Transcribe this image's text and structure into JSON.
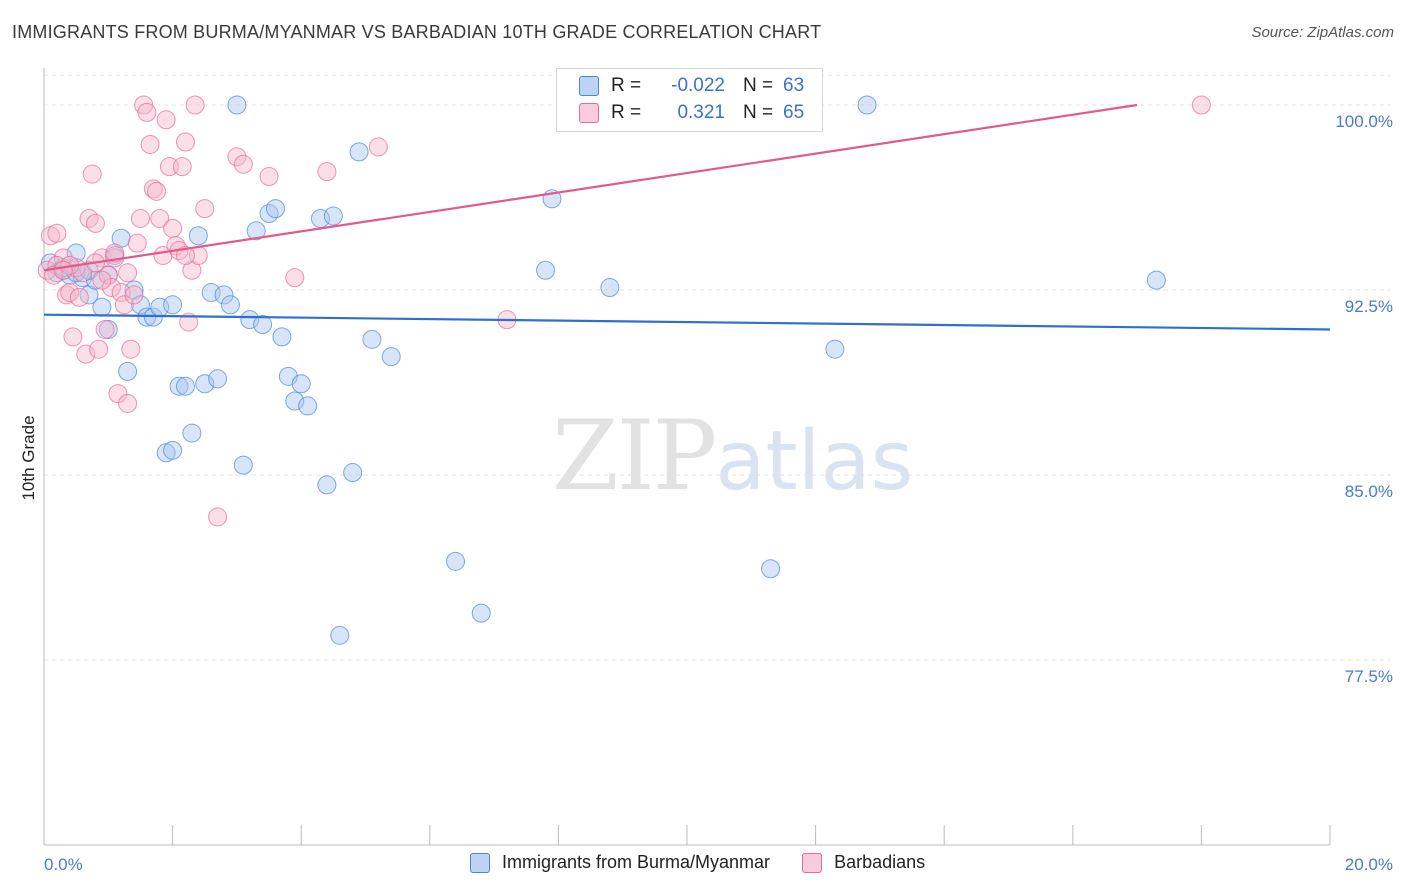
{
  "title": "IMMIGRANTS FROM BURMA/MYANMAR VS BARBADIAN 10TH GRADE CORRELATION CHART",
  "source": "Source: ZipAtlas.com",
  "watermark": {
    "zip": "ZIP",
    "atlas": "atlas"
  },
  "legend": {
    "blue": {
      "r_label": "R =",
      "r_value": "-0.022",
      "n_label": "N =",
      "n_value": "63"
    },
    "pink": {
      "r_label": "R =",
      "r_value": "0.321",
      "n_label": "N =",
      "n_value": "65"
    }
  },
  "colors": {
    "blue": "#4a86d8",
    "pink": "#e86a97",
    "blue_fill": "#a9c6ef",
    "pink_fill": "#f5b8cc",
    "tick_text": "#4a7cc9"
  },
  "chart_data": {
    "type": "scatter",
    "title": "IMMIGRANTS FROM BURMA/MYANMAR VS BARBADIAN 10TH GRADE CORRELATION CHART",
    "xlabel": "",
    "ylabel": "10th Grade",
    "xlim": [
      0,
      20
    ],
    "ylim": [
      70,
      101.5
    ],
    "x_tick_labels": [
      "0.0%",
      "20.0%"
    ],
    "y_ticks": [
      {
        "value": 100,
        "label": "100.0%"
      },
      {
        "value": 92.5,
        "label": "92.5%"
      },
      {
        "value": 85,
        "label": "85.0%"
      },
      {
        "value": 77.5,
        "label": "77.5%"
      }
    ],
    "grid": true,
    "series": [
      {
        "name": "Immigrants from Burma/Myanmar",
        "color": "#4a86d8",
        "trend": {
          "x": [
            0,
            20
          ],
          "y": [
            91.5,
            90.9
          ]
        },
        "points": [
          [
            0.1,
            93.6
          ],
          [
            0.2,
            93.2
          ],
          [
            0.3,
            93.3
          ],
          [
            0.4,
            93.1
          ],
          [
            0.5,
            94
          ],
          [
            0.6,
            93
          ],
          [
            0.7,
            92.3
          ],
          [
            0.8,
            92.9
          ],
          [
            0.9,
            91.8
          ],
          [
            1.0,
            90.9
          ],
          [
            1.1,
            93.9
          ],
          [
            1.2,
            94.6
          ],
          [
            1.3,
            89.2
          ],
          [
            1.4,
            92.5
          ],
          [
            1.5,
            91.9
          ],
          [
            1.6,
            91.4
          ],
          [
            1.7,
            91.4
          ],
          [
            1.8,
            91.8
          ],
          [
            1.9,
            85.9
          ],
          [
            2.0,
            86
          ],
          [
            2.1,
            88.6
          ],
          [
            2.2,
            88.6
          ],
          [
            2.3,
            86.7
          ],
          [
            2.4,
            94.7
          ],
          [
            2.5,
            88.7
          ],
          [
            2.6,
            92.4
          ],
          [
            2.7,
            88.9
          ],
          [
            2.8,
            92.3
          ],
          [
            2.9,
            91.9
          ],
          [
            3.0,
            100
          ],
          [
            3.1,
            85.4
          ],
          [
            3.2,
            91.3
          ],
          [
            3.3,
            94.9
          ],
          [
            3.4,
            91.1
          ],
          [
            3.5,
            95.6
          ],
          [
            3.6,
            95.8
          ],
          [
            3.7,
            90.6
          ],
          [
            3.8,
            89
          ],
          [
            3.9,
            88
          ],
          [
            4.0,
            88.7
          ],
          [
            4.1,
            87.8
          ],
          [
            4.3,
            95.4
          ],
          [
            4.4,
            84.6
          ],
          [
            4.5,
            95.5
          ],
          [
            4.6,
            78.5
          ],
          [
            4.8,
            85.1
          ],
          [
            4.9,
            98.1
          ],
          [
            5.1,
            90.5
          ],
          [
            5.4,
            89.8
          ],
          [
            6.4,
            81.5
          ],
          [
            6.8,
            79.4
          ],
          [
            7.8,
            93.3
          ],
          [
            7.9,
            96.2
          ],
          [
            8.8,
            92.6
          ],
          [
            11.3,
            81.2
          ],
          [
            12.3,
            90.1
          ],
          [
            12.8,
            100
          ],
          [
            17.3,
            92.9
          ],
          [
            2.0,
            91.9
          ],
          [
            1.0,
            93.1
          ],
          [
            0.3,
            93.4
          ],
          [
            0.5,
            93.2
          ],
          [
            0.7,
            93.3
          ]
        ]
      },
      {
        "name": "Barbadians",
        "color": "#e86a97",
        "trend": {
          "x": [
            0,
            17
          ],
          "y": [
            93.3,
            100
          ]
        },
        "points": [
          [
            0.05,
            93.3
          ],
          [
            0.1,
            94.7
          ],
          [
            0.2,
            94.8
          ],
          [
            0.3,
            93.8
          ],
          [
            0.35,
            92.3
          ],
          [
            0.4,
            92.4
          ],
          [
            0.45,
            90.6
          ],
          [
            0.5,
            93.4
          ],
          [
            0.55,
            92.2
          ],
          [
            0.6,
            93.2
          ],
          [
            0.65,
            89.9
          ],
          [
            0.7,
            95.4
          ],
          [
            0.75,
            97.2
          ],
          [
            0.8,
            95.2
          ],
          [
            0.85,
            90.1
          ],
          [
            0.9,
            93.8
          ],
          [
            0.95,
            90.9
          ],
          [
            1.0,
            93.1
          ],
          [
            1.05,
            92.6
          ],
          [
            1.1,
            93.8
          ],
          [
            1.15,
            88.3
          ],
          [
            1.2,
            92.4
          ],
          [
            1.25,
            91.9
          ],
          [
            1.3,
            87.9
          ],
          [
            1.35,
            90.1
          ],
          [
            1.4,
            92.3
          ],
          [
            1.45,
            94.4
          ],
          [
            1.5,
            95.4
          ],
          [
            1.55,
            100
          ],
          [
            1.6,
            99.7
          ],
          [
            1.65,
            98.4
          ],
          [
            1.7,
            96.6
          ],
          [
            1.75,
            96.5
          ],
          [
            1.8,
            95.4
          ],
          [
            1.85,
            93.9
          ],
          [
            1.9,
            99.4
          ],
          [
            1.95,
            97.5
          ],
          [
            2.0,
            95
          ],
          [
            2.05,
            94.3
          ],
          [
            2.1,
            94.1
          ],
          [
            2.15,
            97.5
          ],
          [
            2.2,
            98.5
          ],
          [
            2.25,
            91.2
          ],
          [
            2.3,
            93.3
          ],
          [
            2.35,
            100
          ],
          [
            2.4,
            93.9
          ],
          [
            2.5,
            95.8
          ],
          [
            2.7,
            83.3
          ],
          [
            3.0,
            97.9
          ],
          [
            3.1,
            97.6
          ],
          [
            3.5,
            97.1
          ],
          [
            3.9,
            93
          ],
          [
            4.4,
            97.3
          ],
          [
            5.2,
            98.3
          ],
          [
            7.2,
            91.3
          ],
          [
            18.0,
            100
          ],
          [
            0.2,
            93.5
          ],
          [
            0.15,
            93.1
          ],
          [
            0.8,
            93.6
          ],
          [
            1.3,
            93.2
          ],
          [
            0.9,
            92.9
          ],
          [
            2.2,
            93.9
          ],
          [
            0.4,
            93.5
          ],
          [
            1.1,
            94
          ],
          [
            0.3,
            93.3
          ]
        ]
      }
    ]
  },
  "bottom_legend": {
    "blue_label": "Immigrants from Burma/Myanmar",
    "pink_label": "Barbadians"
  }
}
